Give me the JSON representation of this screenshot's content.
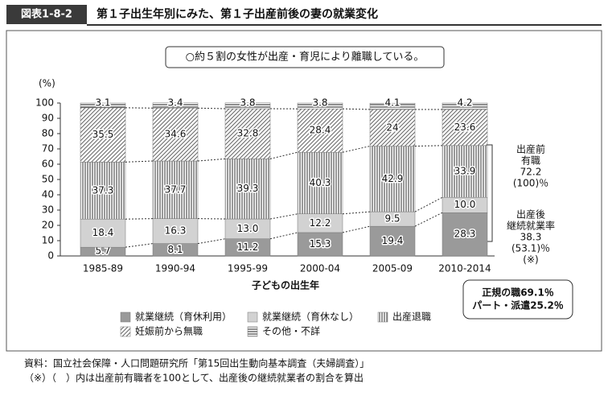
{
  "chart_data": {
    "type": "stacked_bar",
    "label": "図表1-8-2",
    "title": "第１子出生年別にみた、第１子出産前後の妻の就業変化",
    "subtitle": "○約５割の女性が出産・育児により離職している。",
    "y_unit": "(%)",
    "x_label": "子どもの出生年",
    "categories": [
      "1985-89",
      "1990-94",
      "1995-99",
      "2000-04",
      "2005-09",
      "2010-2014"
    ],
    "series": [
      {
        "name": "就業継続（育休利用）",
        "color": "#9a9a9a",
        "pattern": "solid",
        "values": [
          5.7,
          8.1,
          11.2,
          15.3,
          19.4,
          28.3
        ]
      },
      {
        "name": "就業継続（育休なし）",
        "color": "#d2d2d2",
        "pattern": "solid",
        "values": [
          18.4,
          16.3,
          13.0,
          12.2,
          9.5,
          10.0
        ],
        "value_labels": [
          "18.4",
          "16.3",
          "13.0",
          "12.2",
          "9.5",
          "10.0"
        ]
      },
      {
        "name": "出産退職",
        "color": "#666666",
        "pattern": "vertical",
        "values": [
          37.3,
          37.7,
          39.3,
          40.3,
          42.9,
          33.9
        ]
      },
      {
        "name": "妊娠前から無職",
        "color": "#666666",
        "pattern": "diagonal",
        "values": [
          35.5,
          34.6,
          32.8,
          28.4,
          24.0,
          23.6
        ]
      },
      {
        "name": "その他・不詳",
        "color": "#555555",
        "pattern": "horizontal",
        "values": [
          3.1,
          3.4,
          3.8,
          3.8,
          4.1,
          4.2
        ]
      }
    ],
    "ylim": [
      0,
      100
    ],
    "yticks": [
      0,
      10,
      20,
      30,
      40,
      50,
      60,
      70,
      80,
      90,
      100
    ],
    "annotations": [
      {
        "lines": [
          "出産前",
          "有職",
          "72.2",
          "(100)％"
        ]
      },
      {
        "lines": [
          "出産後",
          "継続就業率",
          "38.3",
          "(53.1)％",
          "(※)"
        ]
      },
      {
        "lines": [
          "正規の職69.1％",
          "パート・派遣25.2％"
        ]
      }
    ],
    "notes": [
      "資料：国立社会保障・人口問題研究所「第15回出生動向基本調査（夫婦調査）」",
      "（※）（　）内は出産前有職者を100として、出産後の継続就業者の割合を算出"
    ]
  }
}
